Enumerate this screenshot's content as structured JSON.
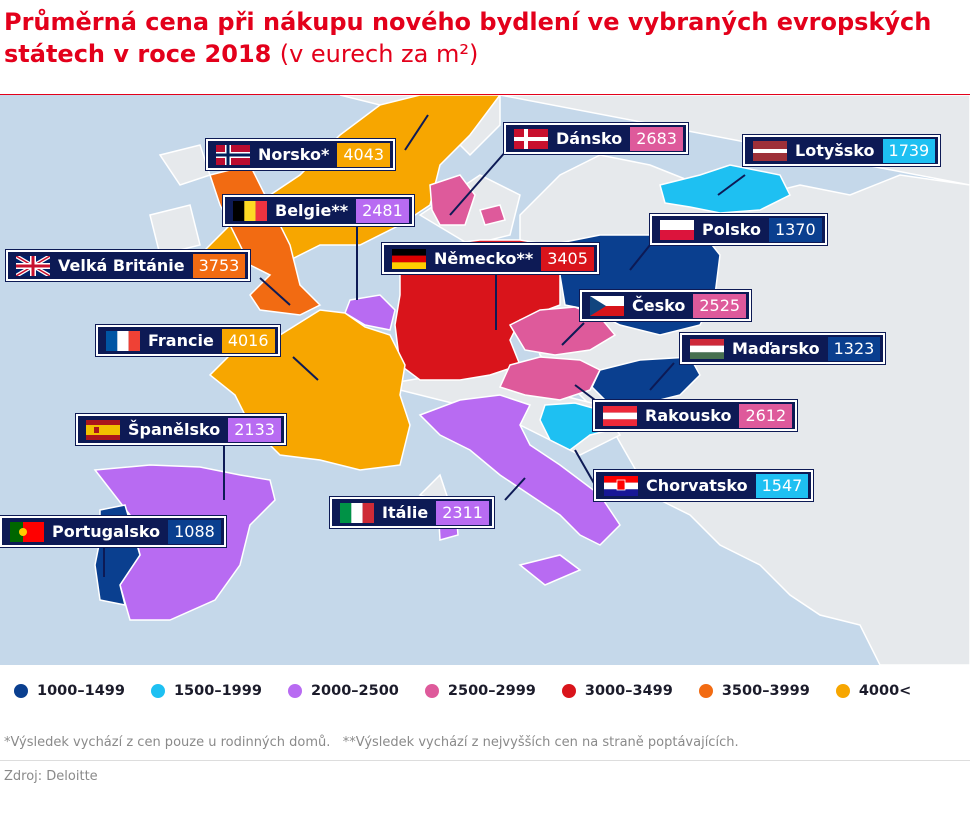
{
  "title": {
    "main": "Průměrná cena při nákupu nového bydlení ve vybraných evropských státech v roce 2018",
    "unit": "(v eurech za m²)"
  },
  "countries": [
    {
      "key": "norsko",
      "label": "Norsko*",
      "value": "4043",
      "value_color": "#f7a600",
      "category": "4000<"
    },
    {
      "key": "dansko",
      "label": "Dánsko",
      "value": "2683",
      "value_color": "#de5a9b",
      "category": "2500–2999"
    },
    {
      "key": "lotyssko",
      "label": "Lotyšsko",
      "value": "1739",
      "value_color": "#1ec0f2",
      "category": "1500–1999"
    },
    {
      "key": "belgie",
      "label": "Belgie**",
      "value": "2481",
      "value_color": "#b86bf2",
      "category": "2000–2500"
    },
    {
      "key": "polsko",
      "label": "Polsko",
      "value": "1370",
      "value_color": "#0a3f8f",
      "category": "1000–1499"
    },
    {
      "key": "nemecko",
      "label": "Německo**",
      "value": "3405",
      "value_color": "#d9141b",
      "category": "3000–3499"
    },
    {
      "key": "velka_britanie",
      "label": "Velká Británie",
      "value": "3753",
      "value_color": "#f26b12",
      "category": "3500–3999"
    },
    {
      "key": "cesko",
      "label": "Česko",
      "value": "2525",
      "value_color": "#de5a9b",
      "category": "2500–2999"
    },
    {
      "key": "francie",
      "label": "Francie",
      "value": "4016",
      "value_color": "#f7a600",
      "category": "4000<"
    },
    {
      "key": "madarsko",
      "label": "Maďarsko",
      "value": "1323",
      "value_color": "#0a3f8f",
      "category": "1000–1499"
    },
    {
      "key": "rakousko",
      "label": "Rakousko",
      "value": "2612",
      "value_color": "#de5a9b",
      "category": "2500–2999"
    },
    {
      "key": "spanelsko",
      "label": "Španělsko",
      "value": "2133",
      "value_color": "#b86bf2",
      "category": "2000–2500"
    },
    {
      "key": "chorvatsko",
      "label": "Chorvatsko",
      "value": "1547",
      "value_color": "#1ec0f2",
      "category": "1500–1999"
    },
    {
      "key": "italie",
      "label": "Itálie",
      "value": "2311",
      "value_color": "#b86bf2",
      "category": "2000–2500"
    },
    {
      "key": "portugalsko",
      "label": "Portugalsko",
      "value": "1088",
      "value_color": "#0a3f8f",
      "category": "1000–1499"
    }
  ],
  "legend": [
    {
      "label": "1000–1499",
      "color": "#0a3f8f"
    },
    {
      "label": "1500–1999",
      "color": "#1ec0f2"
    },
    {
      "label": "2000–2500",
      "color": "#b86bf2"
    },
    {
      "label": "2500–2999",
      "color": "#de5a9b"
    },
    {
      "label": "3000–3499",
      "color": "#d9141b"
    },
    {
      "label": "3500–3999",
      "color": "#f26b12"
    },
    {
      "label": "4000<",
      "color": "#f7a600"
    }
  ],
  "footnote": "*Výsledek vychází z cen pouze u rodinných domů.   **Výsledek vychází z nejvyšších cen na straně poptávajících.",
  "source": "Zdroj: Deloitte",
  "colors": {
    "sea": "#c5d8ea",
    "land_other": "#e6e9ec",
    "label_bg": "#0d1a55",
    "title": "#e3001b"
  }
}
